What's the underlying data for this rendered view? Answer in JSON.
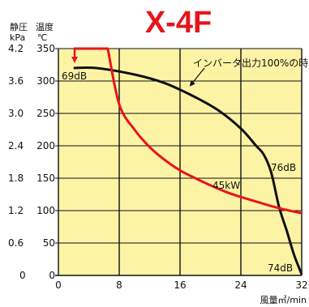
{
  "chart_data": {
    "type": "line",
    "title": "X-4F",
    "left_axis": {
      "label_line1": "静圧",
      "label_line2": "kPa",
      "ticks": [
        "4.2",
        "3.6",
        "3.0",
        "2.4",
        "1.8",
        "1.2",
        "0.6",
        "0"
      ],
      "ylim": [
        0,
        4.2
      ]
    },
    "right_axis": {
      "label_line1": "温度",
      "label_line2": "℃",
      "ticks": [
        "350",
        "300",
        "250",
        "200",
        "150",
        "100",
        "50",
        "0"
      ],
      "ylim": [
        0,
        350
      ]
    },
    "x_axis": {
      "label": "風量㎥/min",
      "ticks": [
        "0",
        "8",
        "16",
        "24",
        "32"
      ],
      "xlim": [
        0,
        32
      ]
    },
    "grid": true,
    "series": [
      {
        "axis": "pressure",
        "color": "#111111",
        "x": [
          2,
          5,
          10,
          14,
          18,
          21,
          24,
          26,
          27,
          28,
          29,
          30,
          31,
          32
        ],
        "y": [
          3.84,
          3.84,
          3.72,
          3.56,
          3.3,
          3.06,
          2.72,
          2.4,
          2.24,
          1.9,
          1.28,
          0.84,
          0.38,
          0.02
        ]
      },
      {
        "axis": "temperature",
        "color": "#e8141c",
        "x": [
          2,
          6.5,
          8,
          10,
          12,
          14,
          16,
          18,
          20,
          22,
          24,
          26,
          28,
          30,
          32
        ],
        "y": [
          350,
          350,
          264,
          225,
          198,
          178,
          162,
          150,
          139,
          129,
          121,
          114,
          107,
          101,
          96
        ]
      }
    ],
    "annotations": [
      {
        "id": "inverter",
        "text": "インバータ出力100%の時"
      },
      {
        "id": "p69",
        "text": "69dB"
      },
      {
        "id": "p76",
        "text": "76dB"
      },
      {
        "id": "p74",
        "text": "74dB"
      },
      {
        "id": "kw45",
        "text": "45kW"
      }
    ],
    "colors": {
      "plot_bg": "#fcf3a5",
      "grid": "#111111",
      "pressure": "#111111",
      "temperature": "#e8141c"
    }
  }
}
